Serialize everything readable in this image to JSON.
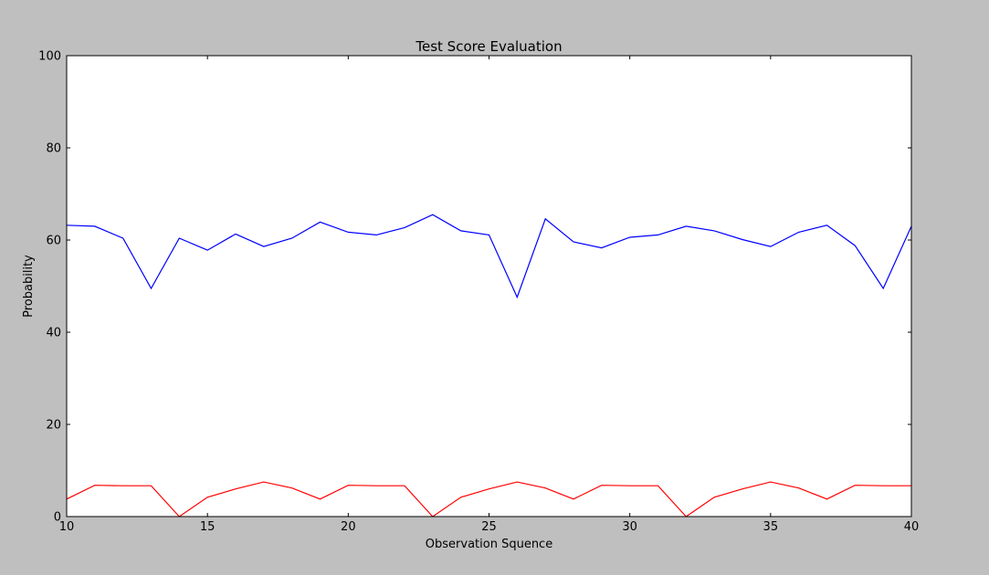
{
  "chart_data": {
    "type": "line",
    "title": "Test Score Evaluation",
    "xlabel": "Observation Squence",
    "ylabel": "Probability",
    "xlim": [
      10,
      40
    ],
    "ylim": [
      0,
      100
    ],
    "xticks": [
      10,
      15,
      20,
      25,
      30,
      35,
      40
    ],
    "yticks": [
      0,
      20,
      40,
      60,
      80,
      100
    ],
    "grid": false,
    "x": [
      10,
      11,
      12,
      13,
      14,
      15,
      16,
      17,
      18,
      19,
      20,
      21,
      22,
      23,
      24,
      25,
      26,
      27,
      28,
      29,
      30,
      31,
      32,
      33,
      34,
      35,
      36,
      37,
      38,
      39,
      40
    ],
    "series": [
      {
        "color": "#0000ff",
        "values": [
          63.2,
          63.0,
          60.4,
          49.5,
          60.4,
          57.8,
          61.3,
          58.6,
          60.4,
          63.9,
          61.7,
          61.1,
          62.7,
          65.5,
          62.0,
          61.1,
          47.6,
          64.6,
          59.6,
          58.3,
          60.6,
          61.1,
          63.0,
          62.0,
          60.1,
          58.6,
          61.7,
          63.2,
          58.8,
          49.5,
          63.0
        ]
      },
      {
        "color": "#ff0000",
        "values": [
          3.8,
          6.8,
          6.7,
          6.7,
          0.0,
          4.2,
          6.0,
          7.5,
          6.2,
          3.8,
          6.8,
          6.7,
          6.7,
          0.0,
          4.2,
          6.0,
          7.5,
          6.2,
          3.8,
          6.8,
          6.7,
          6.7,
          0.0,
          4.2,
          6.0,
          7.5,
          6.2,
          3.8,
          6.8,
          6.7,
          6.7
        ]
      }
    ]
  }
}
